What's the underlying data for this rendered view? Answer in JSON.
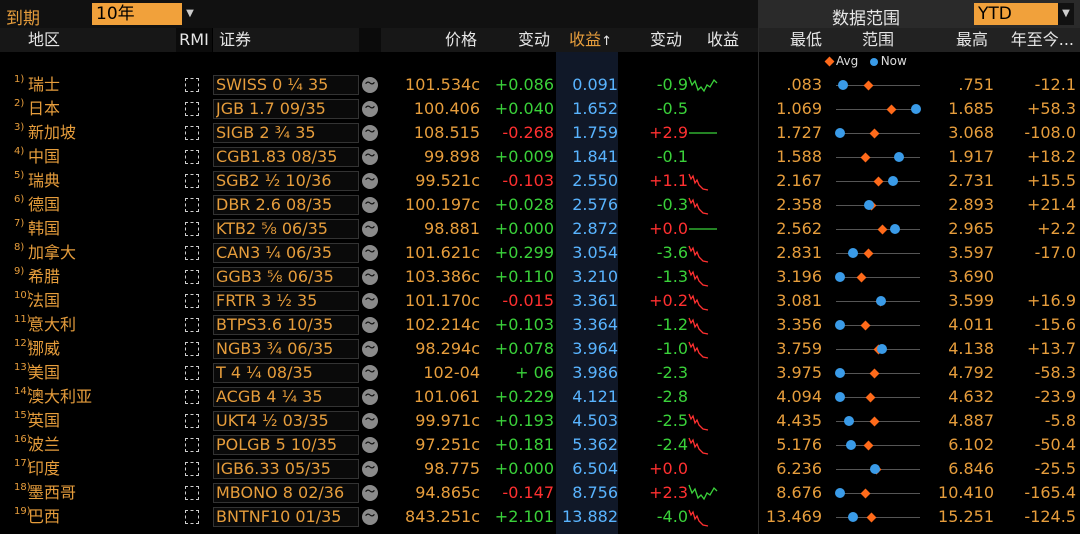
{
  "toolbar": {
    "expiry_label": "到期",
    "expiry_value": "10年",
    "data_range_label": "数据范围",
    "data_range_value": "YTD"
  },
  "headers": {
    "region": "地区",
    "rmi": "RMI",
    "security": "证券",
    "price": "价格",
    "change": "变动",
    "yield": "收益",
    "yield_change": "变动",
    "yield2": "收益",
    "low": "最低",
    "range": "范围",
    "high": "最高",
    "ytd": "年至今..."
  },
  "legend": {
    "avg": "Avg",
    "now": "Now"
  },
  "colors": {
    "accent": "#e69d3c",
    "positive": "#3ad13a",
    "negative": "#ff3030",
    "yield": "#59b4ff",
    "avg_marker": "#ff6a1a",
    "now_marker": "#3a9be8"
  },
  "rows": [
    {
      "num": "1)",
      "region": "瑞士",
      "security": "SWISS 0 ¼ 35",
      "price": "101.534c",
      "change": "+0.086",
      "yield": "0.091",
      "yield_change": "-0.9",
      "low": ".083",
      "high": ".751",
      "ytd": "-12.1",
      "avg_pos": 0.38,
      "now_pos": 0.08,
      "spark": "pos"
    },
    {
      "num": "2)",
      "region": "日本",
      "security": "JGB 1.7 09/35",
      "price": "100.406",
      "change": "+0.040",
      "yield": "1.652",
      "yield_change": "-0.5",
      "low": "1.069",
      "high": "1.685",
      "ytd": "+58.3",
      "avg_pos": 0.65,
      "now_pos": 0.95,
      "spark": "none"
    },
    {
      "num": "3)",
      "region": "新加坡",
      "security": "SIGB 2 ¾ 35",
      "price": "108.515",
      "change": "-0.268",
      "yield": "1.759",
      "yield_change": "+2.9",
      "low": "1.727",
      "high": "3.068",
      "ytd": "-108.0",
      "avg_pos": 0.45,
      "now_pos": 0.05,
      "spark": "flat"
    },
    {
      "num": "4)",
      "region": "中国",
      "security": "CGB1.83 08/35",
      "price": "99.898",
      "change": "+0.009",
      "yield": "1.841",
      "yield_change": "-0.1",
      "low": "1.588",
      "high": "1.917",
      "ytd": "+18.2",
      "avg_pos": 0.35,
      "now_pos": 0.75,
      "spark": "none"
    },
    {
      "num": "5)",
      "region": "瑞典",
      "security": "SGB2 ½ 10/36",
      "price": "99.521c",
      "change": "-0.103",
      "yield": "2.550",
      "yield_change": "+1.1",
      "low": "2.167",
      "high": "2.731",
      "ytd": "+15.5",
      "avg_pos": 0.5,
      "now_pos": 0.68,
      "spark": "neg"
    },
    {
      "num": "6)",
      "region": "德国",
      "security": "DBR 2.6 08/35",
      "price": "100.197c",
      "change": "+0.028",
      "yield": "2.576",
      "yield_change": "-0.3",
      "low": "2.358",
      "high": "2.893",
      "ytd": "+21.4",
      "avg_pos": 0.42,
      "now_pos": 0.39,
      "spark": "neg"
    },
    {
      "num": "7)",
      "region": "韩国",
      "security": "KTB2 ⅝ 06/35",
      "price": "98.881",
      "change": "+0.000",
      "yield": "2.872",
      "yield_change": "+0.0",
      "low": "2.562",
      "high": "2.965",
      "ytd": "+2.2",
      "avg_pos": 0.55,
      "now_pos": 0.7,
      "spark": "flat"
    },
    {
      "num": "8)",
      "region": "加拿大",
      "security": "CAN3 ¼ 06/35",
      "price": "101.621c",
      "change": "+0.299",
      "yield": "3.054",
      "yield_change": "-3.6",
      "low": "2.831",
      "high": "3.597",
      "ytd": "-17.0",
      "avg_pos": 0.38,
      "now_pos": 0.2,
      "spark": "neg"
    },
    {
      "num": "9)",
      "region": "希腊",
      "security": "GGB3 ⅝ 06/35",
      "price": "103.386c",
      "change": "+0.110",
      "yield": "3.210",
      "yield_change": "-1.3",
      "low": "3.196",
      "high": "3.690",
      "ytd": "",
      "avg_pos": 0.3,
      "now_pos": 0.05,
      "spark": "neg"
    },
    {
      "num": "10)",
      "region": "法国",
      "security": "FRTR 3 ½ 35",
      "price": "101.170c",
      "change": "-0.015",
      "yield": "3.361",
      "yield_change": "+0.2",
      "low": "3.081",
      "high": "3.599",
      "ytd": "+16.9",
      "avg_pos": 0.52,
      "now_pos": 0.54,
      "spark": "neg"
    },
    {
      "num": "11)",
      "region": "意大利",
      "security": "BTPS3.6 10/35",
      "price": "102.214c",
      "change": "+0.103",
      "yield": "3.364",
      "yield_change": "-1.2",
      "low": "3.356",
      "high": "4.011",
      "ytd": "-15.6",
      "avg_pos": 0.35,
      "now_pos": 0.05,
      "spark": "neg"
    },
    {
      "num": "12)",
      "region": "挪威",
      "security": "NGB3 ¾ 06/35",
      "price": "98.294c",
      "change": "+0.078",
      "yield": "3.964",
      "yield_change": "-1.0",
      "low": "3.759",
      "high": "4.138",
      "ytd": "+13.7",
      "avg_pos": 0.5,
      "now_pos": 0.55,
      "spark": "neg"
    },
    {
      "num": "13)",
      "region": "美国",
      "security": "T 4 ¼ 08/35",
      "price": "102-04",
      "change": "+ 06",
      "yield": "3.986",
      "yield_change": "-2.3",
      "low": "3.975",
      "high": "4.792",
      "ytd": "-58.3",
      "avg_pos": 0.45,
      "now_pos": 0.05,
      "spark": "none"
    },
    {
      "num": "14)",
      "region": "澳大利亚",
      "security": "ACGB 4 ¼ 35",
      "price": "101.061",
      "change": "+0.229",
      "yield": "4.121",
      "yield_change": "-2.8",
      "low": "4.094",
      "high": "4.632",
      "ytd": "-23.9",
      "avg_pos": 0.4,
      "now_pos": 0.05,
      "spark": "none"
    },
    {
      "num": "15)",
      "region": "英国",
      "security": "UKT4 ½ 03/35",
      "price": "99.971c",
      "change": "+0.193",
      "yield": "4.503",
      "yield_change": "-2.5",
      "low": "4.435",
      "high": "4.887",
      "ytd": "-5.8",
      "avg_pos": 0.45,
      "now_pos": 0.15,
      "spark": "neg"
    },
    {
      "num": "16)",
      "region": "波兰",
      "security": "POLGB 5 10/35",
      "price": "97.251c",
      "change": "+0.181",
      "yield": "5.362",
      "yield_change": "-2.4",
      "low": "5.176",
      "high": "6.102",
      "ytd": "-50.4",
      "avg_pos": 0.38,
      "now_pos": 0.18,
      "spark": "neg"
    },
    {
      "num": "17)",
      "region": "印度",
      "security": "IGB6.33 05/35",
      "price": "98.775",
      "change": "+0.000",
      "yield": "6.504",
      "yield_change": "+0.0",
      "low": "6.236",
      "high": "6.846",
      "ytd": "-25.5",
      "avg_pos": 0.48,
      "now_pos": 0.47,
      "spark": "none"
    },
    {
      "num": "18)",
      "region": "墨西哥",
      "security": "MBONO 8 02/36",
      "price": "94.865c",
      "change": "-0.147",
      "yield": "8.756",
      "yield_change": "+2.3",
      "low": "8.676",
      "high": "10.410",
      "ytd": "-165.4",
      "avg_pos": 0.35,
      "now_pos": 0.05,
      "spark": "pos"
    },
    {
      "num": "19)",
      "region": "巴西",
      "security": "BNTNF10 01/35",
      "price": "843.251c",
      "change": "+2.101",
      "yield": "13.882",
      "yield_change": "-4.0",
      "low": "13.469",
      "high": "15.251",
      "ytd": "-124.5",
      "avg_pos": 0.42,
      "now_pos": 0.2,
      "spark": "neg"
    }
  ]
}
